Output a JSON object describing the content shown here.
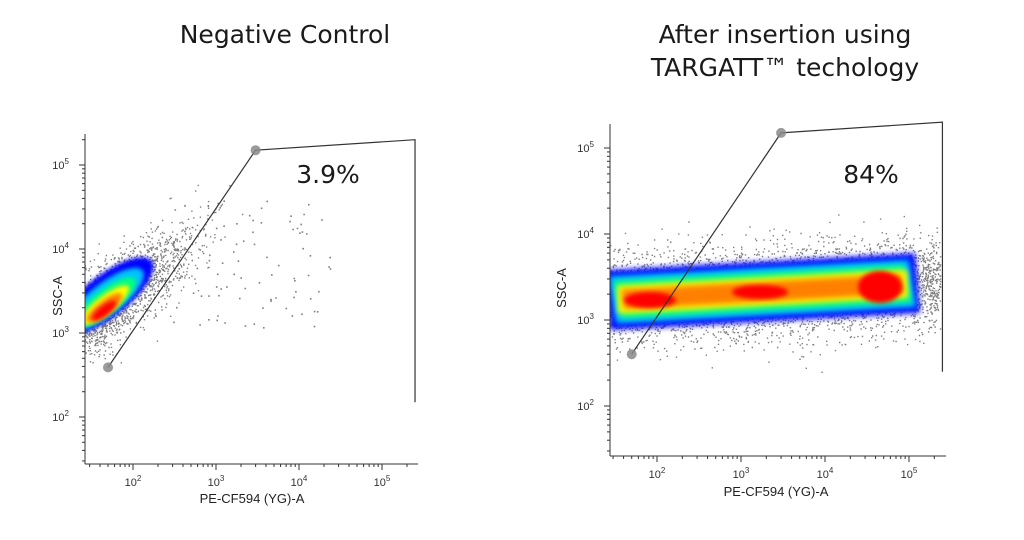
{
  "chart_data": [
    {
      "type": "scatter",
      "title": "Negative Control",
      "xlabel": "PE-CF594 (YG)-A",
      "ylabel": "SSC-A",
      "xscale": "log",
      "yscale": "log",
      "xlim": [
        25,
        250000
      ],
      "ylim": [
        20,
        200000
      ],
      "xticks": [
        "10^2",
        "10^3",
        "10^4",
        "10^5"
      ],
      "yticks": [
        "10^2",
        "10^3",
        "10^4",
        "10^5"
      ],
      "gate_vertices": [
        [
          50,
          390
        ],
        [
          3000,
          150000
        ],
        [
          250000,
          200000
        ],
        [
          250000,
          150
        ]
      ],
      "gate_percent_label": "3.9%",
      "population_center": [
        45,
        2200
      ],
      "density_colors": [
        "#808080",
        "#0000ff",
        "#00c0ff",
        "#00ff80",
        "#ffff00",
        "#ff8000",
        "#ff0000"
      ]
    },
    {
      "type": "scatter",
      "title_lines": [
        "After insertion using",
        "TARGATT™ techology"
      ],
      "xlabel": "PE-CF594 (YG)-A",
      "ylabel": "SSC-A",
      "xscale": "log",
      "yscale": "log",
      "xlim": [
        25,
        250000
      ],
      "ylim": [
        20,
        200000
      ],
      "xticks": [
        "10^2",
        "10^3",
        "10^4",
        "10^5"
      ],
      "yticks": [
        "10^2",
        "10^3",
        "10^4",
        "10^5"
      ],
      "gate_vertices": [
        [
          50,
          400
        ],
        [
          3000,
          150000
        ],
        [
          250000,
          200000
        ],
        [
          250000,
          250
        ]
      ],
      "gate_percent_label": "84%",
      "population_center": [
        2000,
        2500
      ],
      "density_colors": [
        "#808080",
        "#0000ff",
        "#00c0ff",
        "#00ff80",
        "#ffff00",
        "#ff8000",
        "#ff0000"
      ]
    }
  ]
}
